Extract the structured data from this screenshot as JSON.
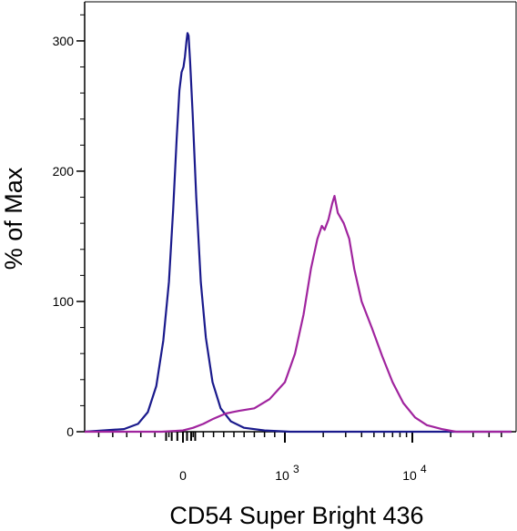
{
  "chart_data": {
    "type": "line",
    "title": "",
    "xlabel": "CD54 Super Bright 436",
    "ylabel": "% of Max",
    "x_scale": "biexponential",
    "x_ticks": [
      {
        "value": 0,
        "label": "0",
        "exp": ""
      },
      {
        "value": 1000,
        "label": "10",
        "exp": "3"
      },
      {
        "value": 10000,
        "label": "10",
        "exp": "4"
      }
    ],
    "y_ticks": [
      {
        "value": 0,
        "label": "0"
      },
      {
        "value": 100,
        "label": "100"
      },
      {
        "value": 200,
        "label": "200"
      },
      {
        "value": 300,
        "label": "300"
      }
    ],
    "ylim": [
      0,
      330
    ],
    "grid": false,
    "series": [
      {
        "color": "#1a1a8c",
        "points": [
          [
            -700,
            0
          ],
          [
            -420,
            2
          ],
          [
            -320,
            6
          ],
          [
            -250,
            15
          ],
          [
            -190,
            35
          ],
          [
            -140,
            70
          ],
          [
            -100,
            115
          ],
          [
            -70,
            170
          ],
          [
            -45,
            225
          ],
          [
            -25,
            262
          ],
          [
            -10,
            276
          ],
          [
            5,
            280
          ],
          [
            20,
            288
          ],
          [
            35,
            300
          ],
          [
            45,
            306
          ],
          [
            55,
            304
          ],
          [
            70,
            285
          ],
          [
            95,
            245
          ],
          [
            130,
            180
          ],
          [
            175,
            115
          ],
          [
            225,
            72
          ],
          [
            290,
            38
          ],
          [
            370,
            18
          ],
          [
            470,
            8
          ],
          [
            600,
            3
          ],
          [
            800,
            1
          ],
          [
            1100,
            0
          ],
          [
            60000,
            0
          ]
        ]
      },
      {
        "color": "#a0249e",
        "points": [
          [
            -700,
            0
          ],
          [
            -150,
            0
          ],
          [
            0,
            1
          ],
          [
            100,
            3
          ],
          [
            200,
            6
          ],
          [
            300,
            10
          ],
          [
            420,
            14
          ],
          [
            550,
            16
          ],
          [
            700,
            18
          ],
          [
            850,
            25
          ],
          [
            1000,
            38
          ],
          [
            1200,
            60
          ],
          [
            1400,
            90
          ],
          [
            1600,
            125
          ],
          [
            1800,
            148
          ],
          [
            1950,
            158
          ],
          [
            2050,
            155
          ],
          [
            2200,
            163
          ],
          [
            2350,
            175
          ],
          [
            2450,
            181
          ],
          [
            2600,
            168
          ],
          [
            2900,
            160
          ],
          [
            3200,
            148
          ],
          [
            3500,
            125
          ],
          [
            4000,
            100
          ],
          [
            4800,
            80
          ],
          [
            5800,
            58
          ],
          [
            7000,
            38
          ],
          [
            8500,
            22
          ],
          [
            10500,
            11
          ],
          [
            13000,
            5
          ],
          [
            17000,
            2
          ],
          [
            22000,
            0
          ],
          [
            60000,
            0
          ]
        ]
      }
    ]
  }
}
